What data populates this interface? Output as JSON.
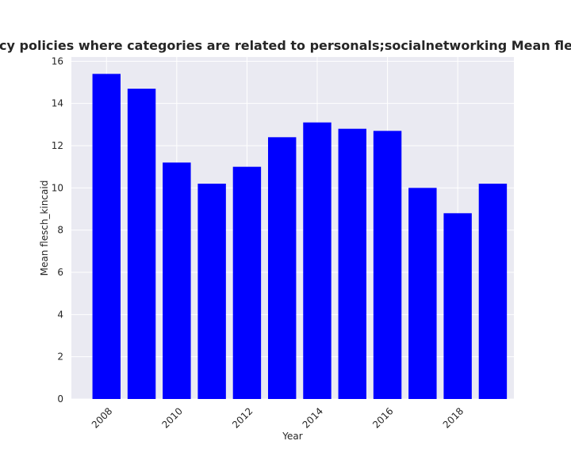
{
  "chart_data": {
    "type": "bar",
    "title": "Mean flesch_kincaid in privacy policies where categories are related to personals;socialnetworking Mean flesch_kincaid in privacy policies",
    "xlabel": "Year",
    "ylabel": "Mean flesch_kincaid",
    "x": [
      2008,
      2009,
      2010,
      2011,
      2012,
      2013,
      2014,
      2015,
      2016,
      2017,
      2018,
      2019
    ],
    "values": [
      15.4,
      14.7,
      11.2,
      10.2,
      11.0,
      12.4,
      13.1,
      12.8,
      12.7,
      10.0,
      8.8,
      10.2
    ],
    "ylim": [
      0,
      16.2
    ],
    "xlim": [
      2007.0,
      2019.6
    ],
    "yticks": [
      0,
      2,
      4,
      6,
      8,
      10,
      12,
      14,
      16
    ],
    "xticks": [
      2008,
      2010,
      2012,
      2014,
      2016,
      2018
    ],
    "bar_color": "#0000ff",
    "background_color": "#eaeaf2",
    "grid_color": "#ffffff",
    "grid": true
  }
}
